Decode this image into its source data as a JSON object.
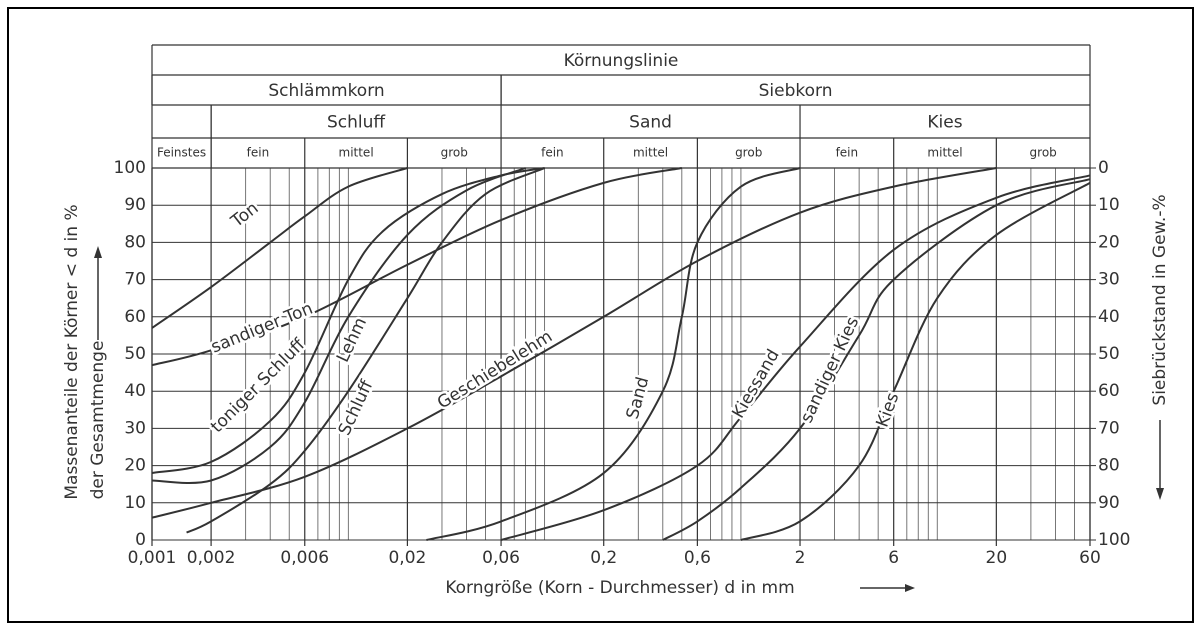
{
  "chart_data": {
    "type": "line",
    "title": "Körnungslinie",
    "groups": [
      "Schlämmkorn",
      "Siebkorn"
    ],
    "classes": [
      "Feinstes",
      "Schluff",
      "Sand",
      "Kies"
    ],
    "subclasses": [
      "fein",
      "mittel",
      "grob",
      "fein",
      "mittel",
      "grob",
      "fein",
      "mittel",
      "grob"
    ],
    "xlabel": "Korngröße (Korn - Durchmesser) d in mm",
    "ylabel": [
      "Massenanteile der Körner < d in %",
      "der Gesamtmenge"
    ],
    "y2label": "Siebrückstand in Gew.-%",
    "xscale": "log",
    "xlim": [
      0.001,
      60
    ],
    "xticks": [
      {
        "value": 0.001,
        "label": "0,001"
      },
      {
        "value": 0.002,
        "label": "0,002"
      },
      {
        "value": 0.006,
        "label": "0,006"
      },
      {
        "value": 0.02,
        "label": "0,02"
      },
      {
        "value": 0.06,
        "label": "0,06"
      },
      {
        "value": 0.2,
        "label": "0,2"
      },
      {
        "value": 0.6,
        "label": "0,6"
      },
      2,
      6,
      20,
      60
    ],
    "xgrid": [
      0.003,
      0.004,
      0.005,
      0.007,
      0.008,
      0.009,
      0.01,
      0.03,
      0.04,
      0.05,
      0.07,
      0.08,
      0.09,
      0.1,
      0.3,
      0.4,
      0.5,
      0.7,
      0.8,
      0.9,
      1,
      3,
      4,
      5,
      7,
      8,
      9,
      10,
      30,
      40,
      50
    ],
    "ylim": [
      0,
      100
    ],
    "yticks": [
      0,
      10,
      20,
      30,
      40,
      50,
      60,
      70,
      80,
      90,
      100
    ],
    "y2lim": [
      100,
      0
    ],
    "y2ticks": [
      0,
      10,
      20,
      30,
      40,
      50,
      60,
      70,
      80,
      90,
      100
    ],
    "grid": true,
    "series": [
      {
        "name": "Ton",
        "color": "#333333",
        "x": [
          0.001,
          0.002,
          0.004,
          0.006,
          0.01,
          0.02
        ],
        "values": [
          57,
          68,
          80,
          87,
          95,
          100
        ]
      },
      {
        "name": "sandiger Ton",
        "color": "#333333",
        "x": [
          0.001,
          0.002,
          0.006,
          0.02,
          0.06,
          0.2,
          0.5
        ],
        "values": [
          47,
          51,
          60,
          74,
          86,
          96,
          100
        ]
      },
      {
        "name": "toniger Schluff",
        "color": "#333333",
        "x": [
          0.001,
          0.002,
          0.004,
          0.006,
          0.01,
          0.015,
          0.03,
          0.06,
          0.1
        ],
        "values": [
          18,
          21,
          32,
          45,
          70,
          83,
          93,
          98,
          100
        ]
      },
      {
        "name": "Lehm",
        "color": "#333333",
        "x": [
          0.001,
          0.002,
          0.004,
          0.006,
          0.01,
          0.02,
          0.04,
          0.08
        ],
        "values": [
          16,
          16,
          25,
          37,
          60,
          82,
          94,
          100
        ]
      },
      {
        "name": "Schluff",
        "color": "#333333",
        "x": [
          0.0015,
          0.002,
          0.004,
          0.006,
          0.01,
          0.02,
          0.03,
          0.05,
          0.1
        ],
        "values": [
          2,
          5,
          15,
          24,
          40,
          65,
          80,
          93,
          100
        ]
      },
      {
        "name": "Geschiebelehm",
        "color": "#333333",
        "x": [
          0.001,
          0.002,
          0.006,
          0.02,
          0.06,
          0.2,
          0.6,
          2,
          6,
          20
        ],
        "values": [
          6,
          10,
          17,
          30,
          44,
          60,
          75,
          88,
          95,
          100
        ]
      },
      {
        "name": "Sand",
        "color": "#333333",
        "x": [
          0.025,
          0.06,
          0.2,
          0.4,
          0.5,
          0.6,
          1,
          2
        ],
        "values": [
          0,
          5,
          18,
          40,
          60,
          80,
          95,
          100
        ]
      },
      {
        "name": "Kiessand",
        "color": "#333333",
        "x": [
          0.06,
          0.2,
          0.6,
          1,
          2,
          6,
          20,
          60
        ],
        "values": [
          0,
          8,
          20,
          33,
          52,
          78,
          92,
          98
        ]
      },
      {
        "name": "sandiger Kies",
        "color": "#333333",
        "x": [
          0.4,
          0.6,
          1,
          2,
          4,
          6,
          20,
          60
        ],
        "values": [
          0,
          5,
          14,
          30,
          55,
          70,
          90,
          97
        ]
      },
      {
        "name": "Kies",
        "color": "#333333",
        "x": [
          1,
          2,
          4,
          6,
          10,
          20,
          60
        ],
        "values": [
          0,
          5,
          20,
          40,
          65,
          82,
          96
        ]
      }
    ]
  }
}
